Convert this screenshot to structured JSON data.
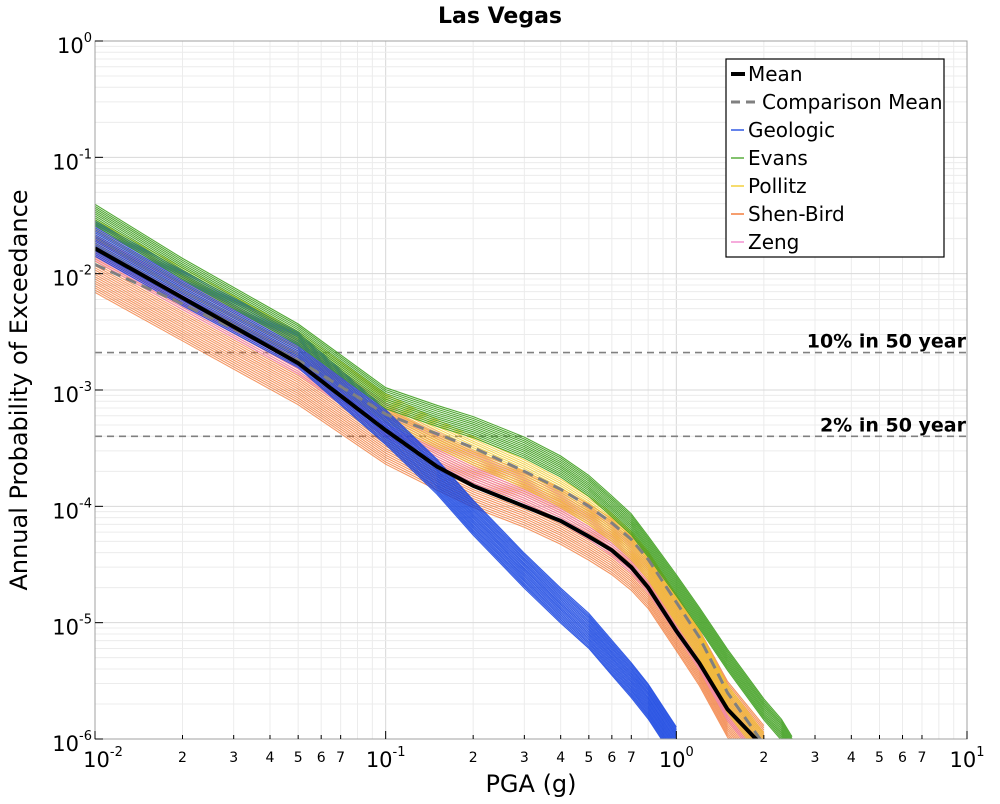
{
  "chart_data": {
    "type": "line",
    "title": "Las Vegas",
    "xlabel": "PGA (g)",
    "ylabel": "Annual Probability of Exceedance",
    "xscale": "log",
    "yscale": "log",
    "xlim": [
      0.01,
      10
    ],
    "ylim": [
      1e-06,
      1
    ],
    "grid": true,
    "legend_position": "top-right",
    "x_major_ticks": [
      {
        "base": "10",
        "exp": "-2"
      },
      {
        "base": "10",
        "exp": "-1"
      },
      {
        "base": "10",
        "exp": "0"
      },
      {
        "base": "10",
        "exp": "1"
      }
    ],
    "y_major_ticks": [
      {
        "base": "10",
        "exp": "0"
      },
      {
        "base": "10",
        "exp": "-1"
      },
      {
        "base": "10",
        "exp": "-2"
      },
      {
        "base": "10",
        "exp": "-3"
      },
      {
        "base": "10",
        "exp": "-4"
      },
      {
        "base": "10",
        "exp": "-5"
      },
      {
        "base": "10",
        "exp": "-6"
      }
    ],
    "x_minor_tick_labels": [
      "2",
      "3",
      "4",
      "5",
      "6",
      "7"
    ],
    "reference_lines": [
      {
        "label": "10% in 50 year",
        "y": 0.0021,
        "color": "#808080"
      },
      {
        "label": "2% in 50 year",
        "y": 0.0004,
        "color": "#808080"
      }
    ],
    "legend": [
      {
        "label": "Mean",
        "color": "#000000",
        "style": "solid-thick"
      },
      {
        "label": "Comparison Mean",
        "color": "#808080",
        "style": "dashed"
      },
      {
        "label": "Geologic",
        "color": "#1040e0",
        "style": "solid"
      },
      {
        "label": "Evans",
        "color": "#40a020",
        "style": "solid"
      },
      {
        "label": "Pollitz",
        "color": "#f0c820",
        "style": "solid"
      },
      {
        "label": "Shen-Bird",
        "color": "#f06a20",
        "style": "solid"
      },
      {
        "label": "Zeng",
        "color": "#f080c8",
        "style": "solid"
      }
    ],
    "x": [
      0.01,
      0.02,
      0.05,
      0.1,
      0.15,
      0.2,
      0.3,
      0.4,
      0.5,
      0.6,
      0.7,
      0.8,
      1.0,
      1.2,
      1.5,
      2.0,
      2.3,
      2.5,
      2.7
    ],
    "series": [
      {
        "name": "Mean",
        "color": "#000000",
        "values": [
          0.0165,
          0.0062,
          0.0017,
          0.00045,
          0.00022,
          0.00015,
          0.0001,
          7.5e-05,
          5.5e-05,
          4.2e-05,
          3e-05,
          2e-05,
          8.5e-06,
          4.5e-06,
          1.8e-06,
          8.5e-07,
          null,
          null,
          null
        ]
      },
      {
        "name": "Comparison Mean",
        "color": "#808080",
        "values": [
          0.012,
          0.0055,
          0.0018,
          0.00062,
          0.00042,
          0.00032,
          0.0002,
          0.00014,
          0.0001,
          7.2e-05,
          5.2e-05,
          3.5e-05,
          1.5e-05,
          7.5e-06,
          2.5e-06,
          9e-07,
          null,
          null,
          null
        ]
      },
      {
        "name": "Geologic",
        "color": "#1040e0",
        "values": [
          0.02,
          0.0075,
          0.0022,
          0.00048,
          0.00018,
          8e-05,
          2.8e-05,
          1.4e-05,
          8.5e-06,
          5e-06,
          3.2e-06,
          2.1e-06,
          9e-07,
          null,
          null,
          null,
          null,
          null,
          null
        ]
      },
      {
        "name": "Evans",
        "color": "#40a020",
        "values": [
          0.032,
          0.011,
          0.003,
          0.00085,
          0.0006,
          0.00048,
          0.00032,
          0.00022,
          0.00015,
          0.0001,
          7e-05,
          4.5e-05,
          2.1e-05,
          1.1e-05,
          4.8e-06,
          1.8e-06,
          1.2e-06,
          8.5e-07,
          null
        ]
      },
      {
        "name": "Pollitz",
        "color": "#f0c820",
        "values": [
          0.022,
          0.0085,
          0.0024,
          0.0007,
          0.00042,
          0.0003,
          0.00019,
          0.00013,
          9.2e-05,
          6.6e-05,
          4.6e-05,
          3.1e-05,
          1.3e-05,
          6.5e-06,
          2.2e-06,
          8.5e-07,
          null,
          null,
          null
        ]
      },
      {
        "name": "Shen-Bird",
        "color": "#f06a20",
        "values": [
          0.012,
          0.0046,
          0.0013,
          0.0004,
          0.00024,
          0.00017,
          0.000115,
          8.2e-05,
          6e-05,
          4.5e-05,
          3.3e-05,
          2.3e-05,
          1e-05,
          5e-06,
          1.8e-06,
          7.5e-07,
          null,
          null,
          null
        ]
      },
      {
        "name": "Zeng",
        "color": "#f080c8",
        "values": [
          0.018,
          0.0068,
          0.0019,
          0.00055,
          0.00032,
          0.00022,
          0.00014,
          0.0001,
          7.2e-05,
          5.2e-05,
          3.7e-05,
          2.5e-05,
          1.1e-05,
          5.5e-06,
          2e-06,
          8e-07,
          null,
          null,
          null
        ]
      }
    ]
  }
}
